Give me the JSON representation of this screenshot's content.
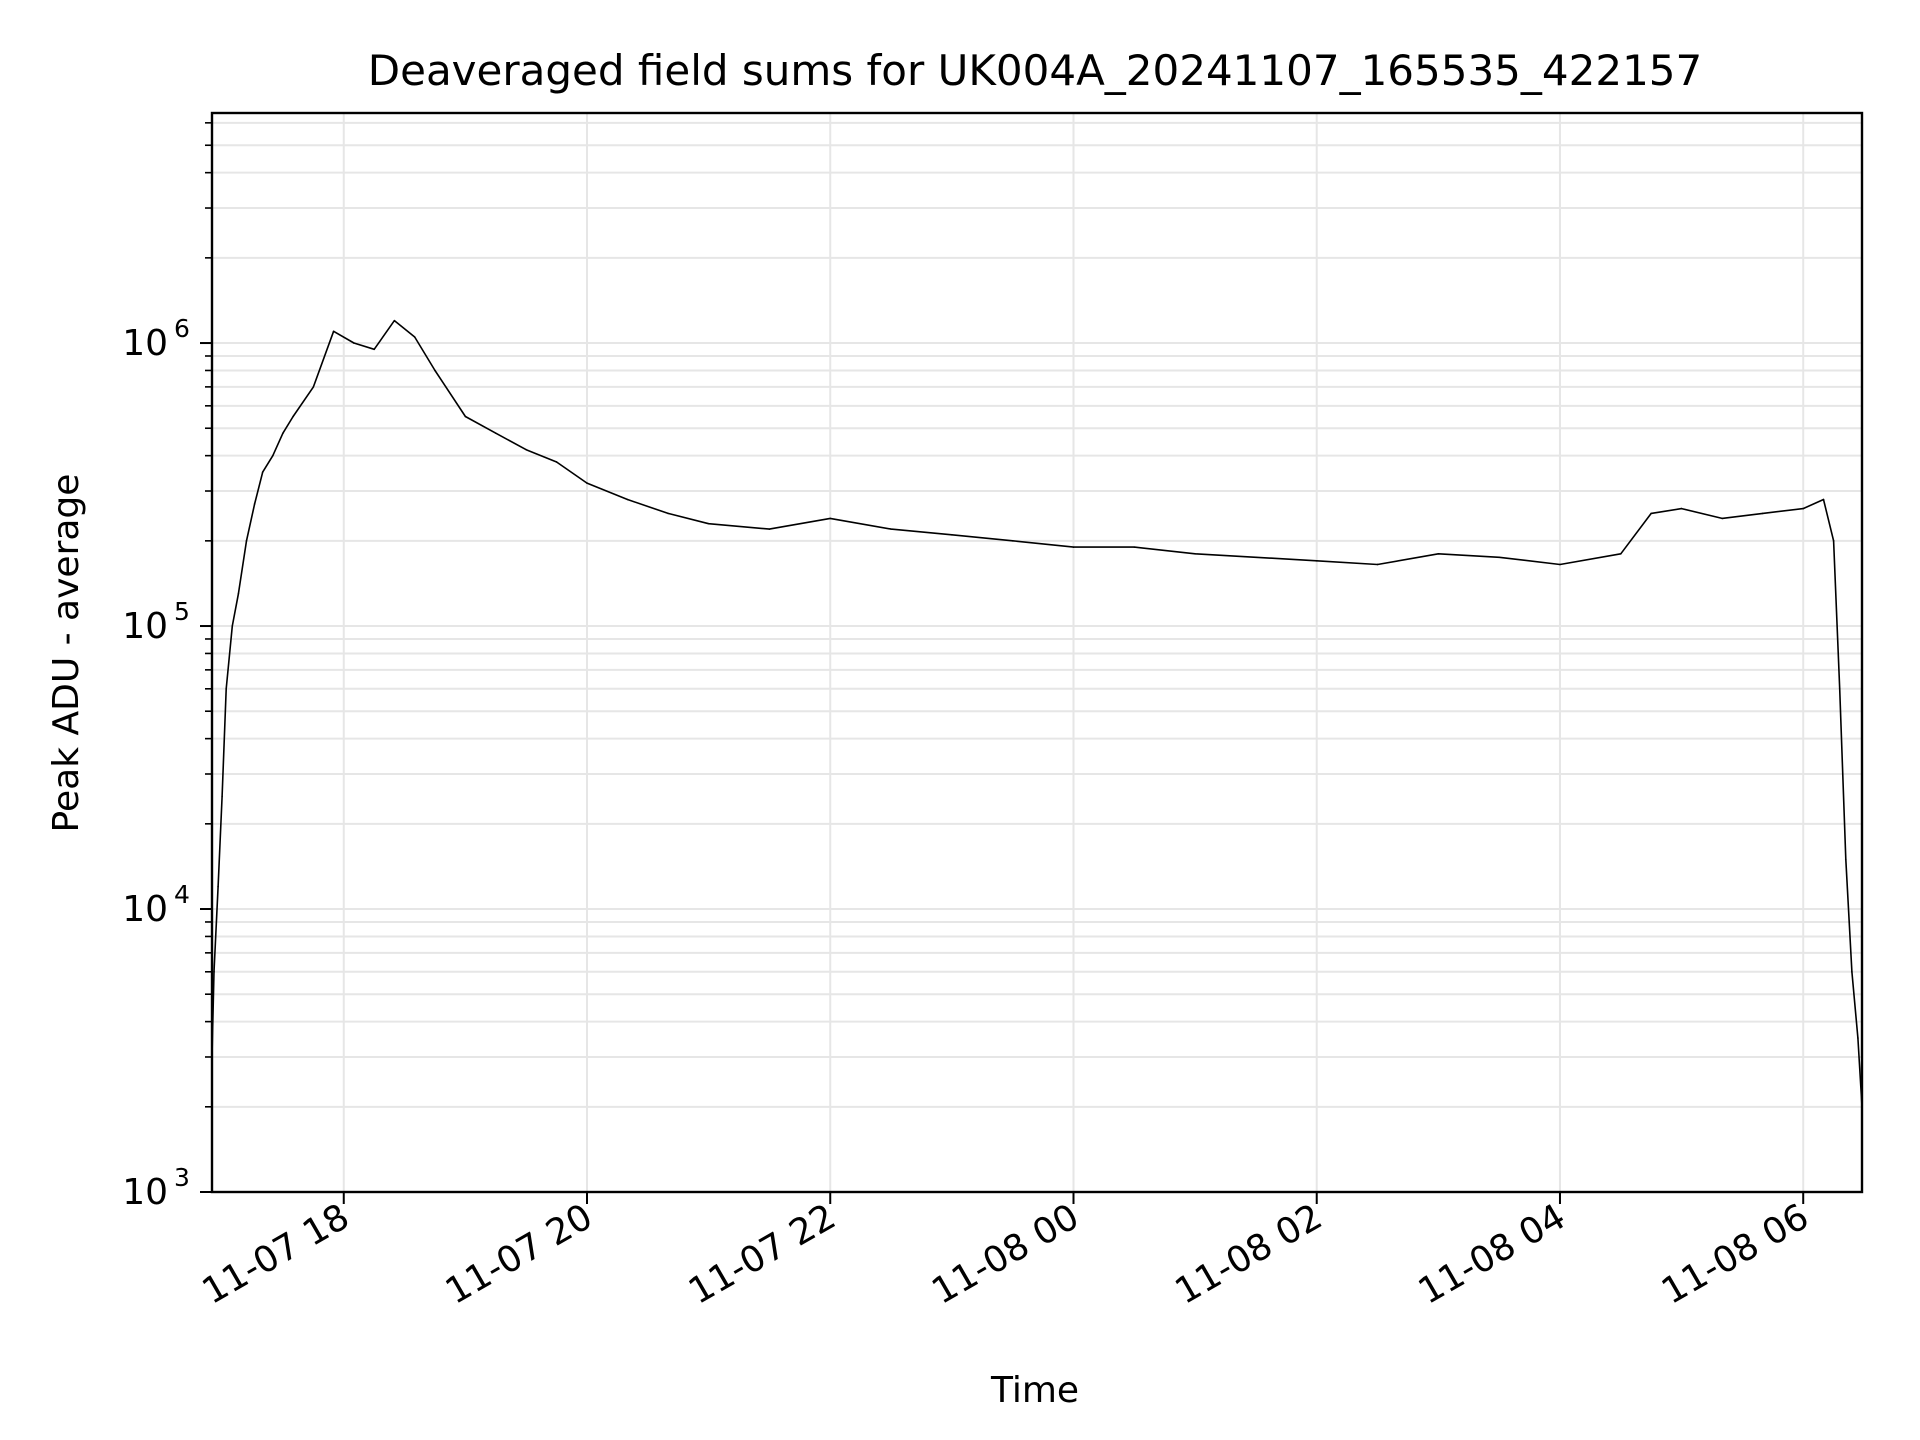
{
  "chart_data": {
    "type": "line",
    "title": "Deaveraged field sums for UK004A_20241107_165535_422157",
    "xlabel": "Time",
    "ylabel": "Peak ADU - average",
    "yscale": "log",
    "ylim": [
      1000,
      6500000
    ],
    "xlim": [
      "2024-11-07 16:55",
      "2024-11-08 06:29"
    ],
    "grid": true,
    "line_color": "#000000",
    "grid_color": "#e6e6e6",
    "x_ticks": [
      {
        "value": "2024-11-07 18:00",
        "label": "11-07 18"
      },
      {
        "value": "2024-11-07 20:00",
        "label": "11-07 20"
      },
      {
        "value": "2024-11-07 22:00",
        "label": "11-07 22"
      },
      {
        "value": "2024-11-08 00:00",
        "label": "11-08 00"
      },
      {
        "value": "2024-11-08 02:00",
        "label": "11-08 02"
      },
      {
        "value": "2024-11-08 04:00",
        "label": "11-08 04"
      },
      {
        "value": "2024-11-08 06:00",
        "label": "11-08 06"
      }
    ],
    "y_ticks": [
      {
        "value": 1000,
        "base": "10",
        "exp": "3"
      },
      {
        "value": 10000,
        "base": "10",
        "exp": "4"
      },
      {
        "value": 100000,
        "base": "10",
        "exp": "5"
      },
      {
        "value": 1000000,
        "base": "10",
        "exp": "6"
      }
    ],
    "series": [
      {
        "x": [
          "2024-11-07 16:55",
          "2024-11-07 16:56",
          "2024-11-07 16:58",
          "2024-11-07 17:00",
          "2024-11-07 17:02",
          "2024-11-07 17:05",
          "2024-11-07 17:08",
          "2024-11-07 17:12",
          "2024-11-07 17:16",
          "2024-11-07 17:20",
          "2024-11-07 17:25",
          "2024-11-07 17:30",
          "2024-11-07 17:35",
          "2024-11-07 17:45",
          "2024-11-07 17:55",
          "2024-11-07 18:05",
          "2024-11-07 18:15",
          "2024-11-07 18:25",
          "2024-11-07 18:35",
          "2024-11-07 18:45",
          "2024-11-07 19:00",
          "2024-11-07 19:15",
          "2024-11-07 19:30",
          "2024-11-07 19:45",
          "2024-11-07 20:00",
          "2024-11-07 20:20",
          "2024-11-07 20:40",
          "2024-11-07 21:00",
          "2024-11-07 21:30",
          "2024-11-07 22:00",
          "2024-11-07 22:30",
          "2024-11-07 23:00",
          "2024-11-07 23:30",
          "2024-11-08 00:00",
          "2024-11-08 00:30",
          "2024-11-08 01:00",
          "2024-11-08 01:30",
          "2024-11-08 02:00",
          "2024-11-08 02:30",
          "2024-11-08 03:00",
          "2024-11-08 03:30",
          "2024-11-08 04:00",
          "2024-11-08 04:30",
          "2024-11-08 04:45",
          "2024-11-08 05:00",
          "2024-11-08 05:20",
          "2024-11-08 05:40",
          "2024-11-08 06:00",
          "2024-11-08 06:10",
          "2024-11-08 06:15",
          "2024-11-08 06:18",
          "2024-11-08 06:21",
          "2024-11-08 06:24",
          "2024-11-08 06:27",
          "2024-11-08 06:29"
        ],
        "values": [
          3000,
          6000,
          12000,
          25000,
          60000,
          100000,
          130000,
          200000,
          270000,
          350000,
          400000,
          480000,
          550000,
          700000,
          1100000,
          1000000,
          950000,
          1200000,
          1050000,
          800000,
          550000,
          480000,
          420000,
          380000,
          320000,
          280000,
          250000,
          230000,
          220000,
          240000,
          220000,
          210000,
          200000,
          190000,
          190000,
          180000,
          175000,
          170000,
          165000,
          180000,
          175000,
          165000,
          180000,
          250000,
          260000,
          240000,
          250000,
          260000,
          280000,
          200000,
          60000,
          15000,
          6000,
          3500,
          2000
        ]
      }
    ]
  }
}
